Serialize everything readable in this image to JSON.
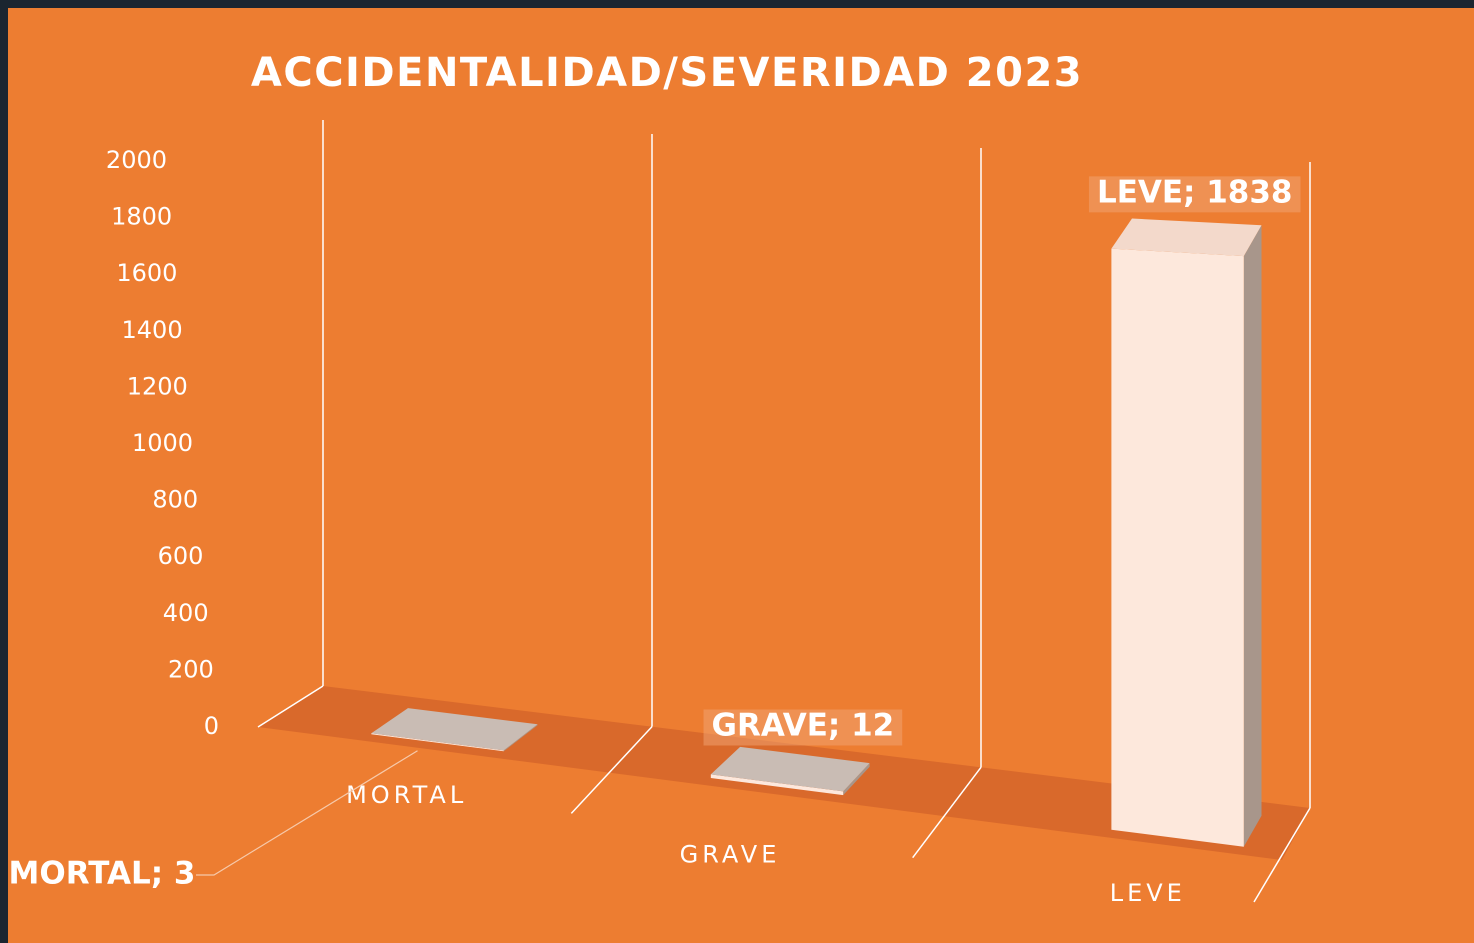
{
  "chart_data": {
    "type": "bar3d",
    "title": "ACCIDENTALIDAD/SEVERIDAD 2023",
    "categories": [
      "MORTAL",
      "GRAVE",
      "LEVE"
    ],
    "values": [
      3,
      12,
      1838
    ],
    "value_labels": [
      "MORTAL; 3",
      "GRAVE; 12",
      "LEVE; 1838"
    ],
    "color": "#fde8dc",
    "ylim": [
      0,
      2000
    ],
    "yticks": [
      0,
      200,
      400,
      600,
      800,
      1000,
      1200,
      1400,
      1600,
      1800,
      2000
    ]
  }
}
